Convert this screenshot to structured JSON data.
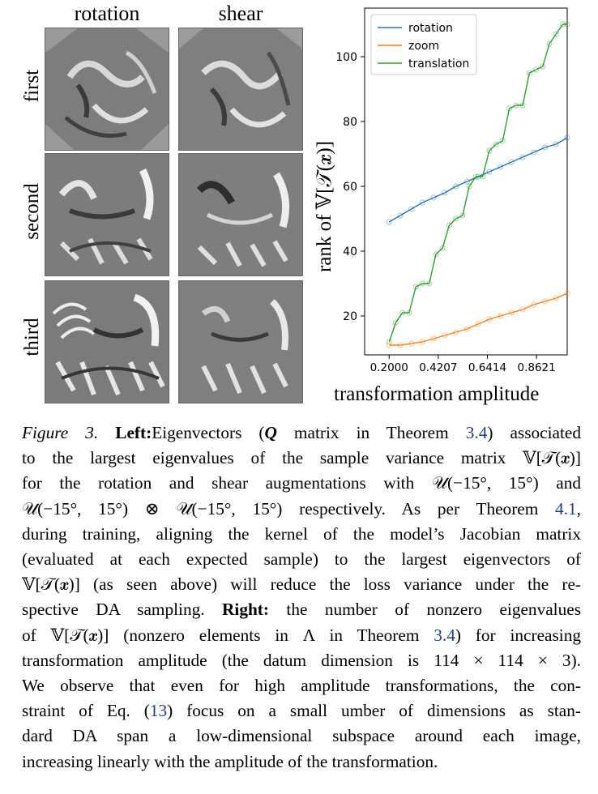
{
  "left": {
    "columns": [
      "rotation",
      "shear"
    ],
    "rows": [
      "first",
      "second",
      "third"
    ]
  },
  "chart_data": {
    "type": "line",
    "xlabel": "transformation amplitude",
    "ylabel": "rank of 𝕍[𝒯(𝒙)]",
    "xlim": [
      0.09,
      1.0
    ],
    "ylim": [
      8,
      115
    ],
    "xticks": [
      "0.2000",
      "0.4207",
      "0.6414",
      "0.8621"
    ],
    "xtick_values": [
      0.2,
      0.4207,
      0.6414,
      0.8621
    ],
    "yticks": [
      20,
      40,
      60,
      80,
      100
    ],
    "legend": "top-left",
    "series": [
      {
        "name": "rotation",
        "color": "#1f77b4",
        "x": [
          0.2,
          0.25,
          0.3,
          0.35,
          0.4,
          0.45,
          0.5,
          0.55,
          0.6,
          0.65,
          0.7,
          0.75,
          0.8,
          0.85,
          0.9,
          0.95,
          1.0
        ],
        "values": [
          49,
          51,
          53,
          55,
          56.5,
          58,
          60,
          61.5,
          63,
          64.5,
          66,
          67.5,
          69,
          70.5,
          72,
          73,
          75
        ]
      },
      {
        "name": "zoom",
        "color": "#ff7f0e",
        "x": [
          0.2,
          0.25,
          0.3,
          0.35,
          0.4,
          0.45,
          0.5,
          0.55,
          0.6,
          0.65,
          0.7,
          0.75,
          0.8,
          0.85,
          0.9,
          0.95,
          1.0
        ],
        "values": [
          11,
          11,
          11.5,
          12,
          13,
          14,
          15,
          16,
          17.5,
          19,
          20,
          21,
          22,
          23.5,
          24.5,
          25.5,
          27
        ]
      },
      {
        "name": "translation",
        "color": "#2ca02c",
        "x": [
          0.2,
          0.23,
          0.26,
          0.29,
          0.32,
          0.35,
          0.38,
          0.41,
          0.44,
          0.47,
          0.5,
          0.53,
          0.56,
          0.59,
          0.62,
          0.65,
          0.68,
          0.71,
          0.74,
          0.77,
          0.8,
          0.83,
          0.86,
          0.89,
          0.92,
          0.95,
          0.98,
          1.0
        ],
        "values": [
          12,
          18,
          21,
          21,
          29,
          30,
          30,
          39,
          41,
          48,
          50,
          51,
          60,
          63,
          63,
          71,
          73,
          74,
          84,
          85,
          85,
          95,
          96,
          97,
          104,
          107,
          110,
          110
        ]
      }
    ]
  },
  "caption": {
    "label": "Figure 3.",
    "bold_left": "Left:",
    "line1_rest_a": "Eigenvectors (",
    "Q": "Q",
    "line1_rest_b": " matrix in Theorem ",
    "ref_34": "3.4",
    "line1_rest_c": ") associated",
    "line2": "to the largest eigenvalues of the sample variance matrix 𝕍[𝒯(𝒙)]",
    "line3": "for the rotation and shear augmentations with 𝒰(−15°, 15°) and",
    "line4a": "𝒰(−15°, 15°) ⊗ 𝒰(−15°, 15°) respectively. As per Theorem ",
    "ref_41": "4.1",
    "line4b": ",",
    "line5": "during training, aligning the kernel of the model’s Jacobian matrix",
    "line6": "(evaluated at each expected sample) to the largest eigenvectors of",
    "line7": "𝕍[𝒯(𝒙)] (as seen above) will reduce the loss variance under the re-",
    "line8a": "spective DA sampling. ",
    "bold_right": "Right:",
    "line8b": " the number of nonzero eigenvalues",
    "line9a": "of 𝕍[𝒯(𝒙)] (nonzero elements in Λ in Theorem ",
    "line9b": ") for increasing",
    "line10": "transformation amplitude (the datum dimension is 114 × 114 × 3).",
    "line11": "We observe that even for high amplitude transformations, the con-",
    "line12a": "straint of Eq. (",
    "ref_13": "13",
    "line12b": ") focus on a small umber of dimensions as stan-",
    "line13": "dard DA span a low-dimensional subspace around each image,",
    "line14": "increasing linearly with the amplitude of the transformation."
  }
}
